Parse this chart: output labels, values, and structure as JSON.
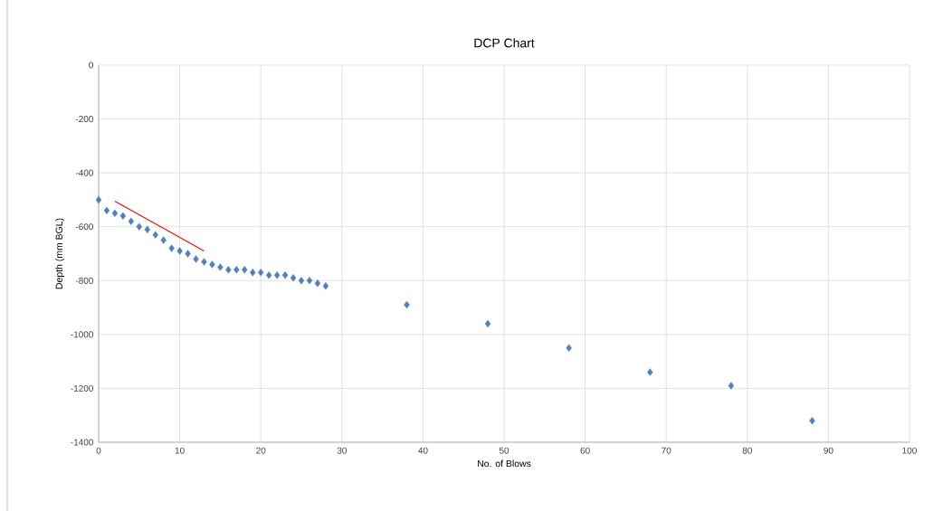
{
  "chart_data": {
    "type": "scatter",
    "title": "DCP Chart",
    "xlabel": "No. of Blows",
    "ylabel": "Depth (mm BGL)",
    "xlim": [
      0,
      100
    ],
    "xticks": [
      0,
      10,
      20,
      30,
      40,
      50,
      60,
      70,
      80,
      90,
      100
    ],
    "ylim": [
      -1400,
      0
    ],
    "yticks": [
      -1400,
      -1200,
      -1000,
      -800,
      -600,
      -400,
      -200,
      0
    ],
    "grid": true,
    "series": [
      {
        "marker": "diamond",
        "color": "#4f81bd",
        "x": [
          0,
          1,
          2,
          3,
          4,
          5,
          6,
          7,
          8,
          9,
          10,
          11,
          12,
          13,
          14,
          15,
          16,
          17,
          18,
          19,
          20,
          21,
          22,
          23,
          24,
          25,
          26,
          27,
          28,
          38,
          48,
          58,
          68,
          78,
          88
        ],
        "values": [
          -500,
          -540,
          -550,
          -560,
          -580,
          -600,
          -610,
          -630,
          -650,
          -680,
          -690,
          -700,
          -720,
          -730,
          -740,
          -750,
          -760,
          -760,
          -760,
          -770,
          -770,
          -780,
          -780,
          -780,
          -790,
          -800,
          -800,
          -810,
          -820,
          -890,
          -960,
          -1050,
          -1140,
          -1190,
          -1320
        ]
      },
      {
        "type": "line",
        "marker": "none",
        "color": "#ff0000",
        "x": [
          2,
          13
        ],
        "values": [
          -505,
          -690
        ]
      }
    ]
  }
}
